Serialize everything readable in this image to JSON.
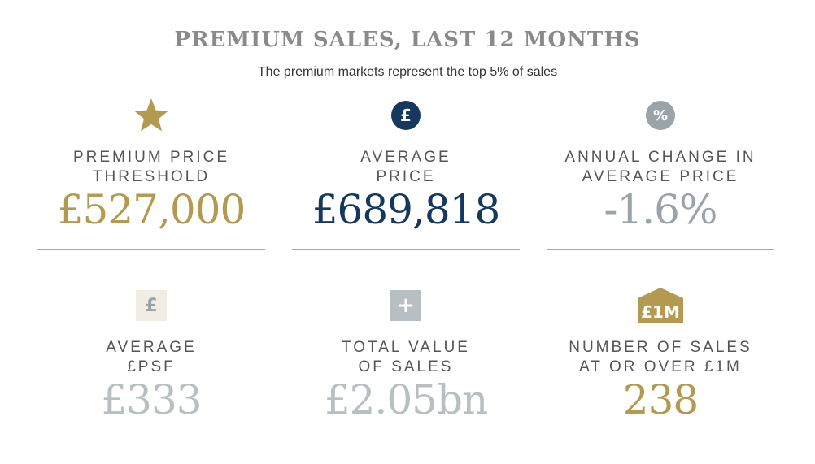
{
  "header": {
    "title": "PREMIUM SALES, LAST 12 MONTHS",
    "subtitle": "The premium markets represent the top 5% of sales"
  },
  "colors": {
    "gold": "#b39a50",
    "navy": "#14385e",
    "grey": "#9aa3a8",
    "light_grey": "#b8bfc2",
    "cream": "#f0ede4"
  },
  "stats": [
    {
      "icon": "star-icon",
      "label_line1": "PREMIUM PRICE",
      "label_line2": "THRESHOLD",
      "value": "£527,000"
    },
    {
      "icon": "pound-circle-icon",
      "icon_glyph": "£",
      "label_line1": "AVERAGE",
      "label_line2": "PRICE",
      "value": "£689,818"
    },
    {
      "icon": "percent-circle-icon",
      "icon_glyph": "%",
      "label_line1": "ANNUAL CHANGE IN",
      "label_line2": "AVERAGE PRICE",
      "value": "-1.6%"
    },
    {
      "icon": "pound-square-icon",
      "icon_glyph": "£",
      "label_line1": "AVERAGE",
      "label_line2": "£PSF",
      "value": "£333"
    },
    {
      "icon": "plus-square-icon",
      "icon_glyph": "+",
      "label_line1": "TOTAL VALUE",
      "label_line2": "OF SALES",
      "value": "£2.05bn"
    },
    {
      "icon": "house-1m-icon",
      "icon_glyph": "£1M",
      "label_line1": "NUMBER OF SALES",
      "label_line2": "AT OR OVER £1M",
      "value": "238"
    }
  ]
}
